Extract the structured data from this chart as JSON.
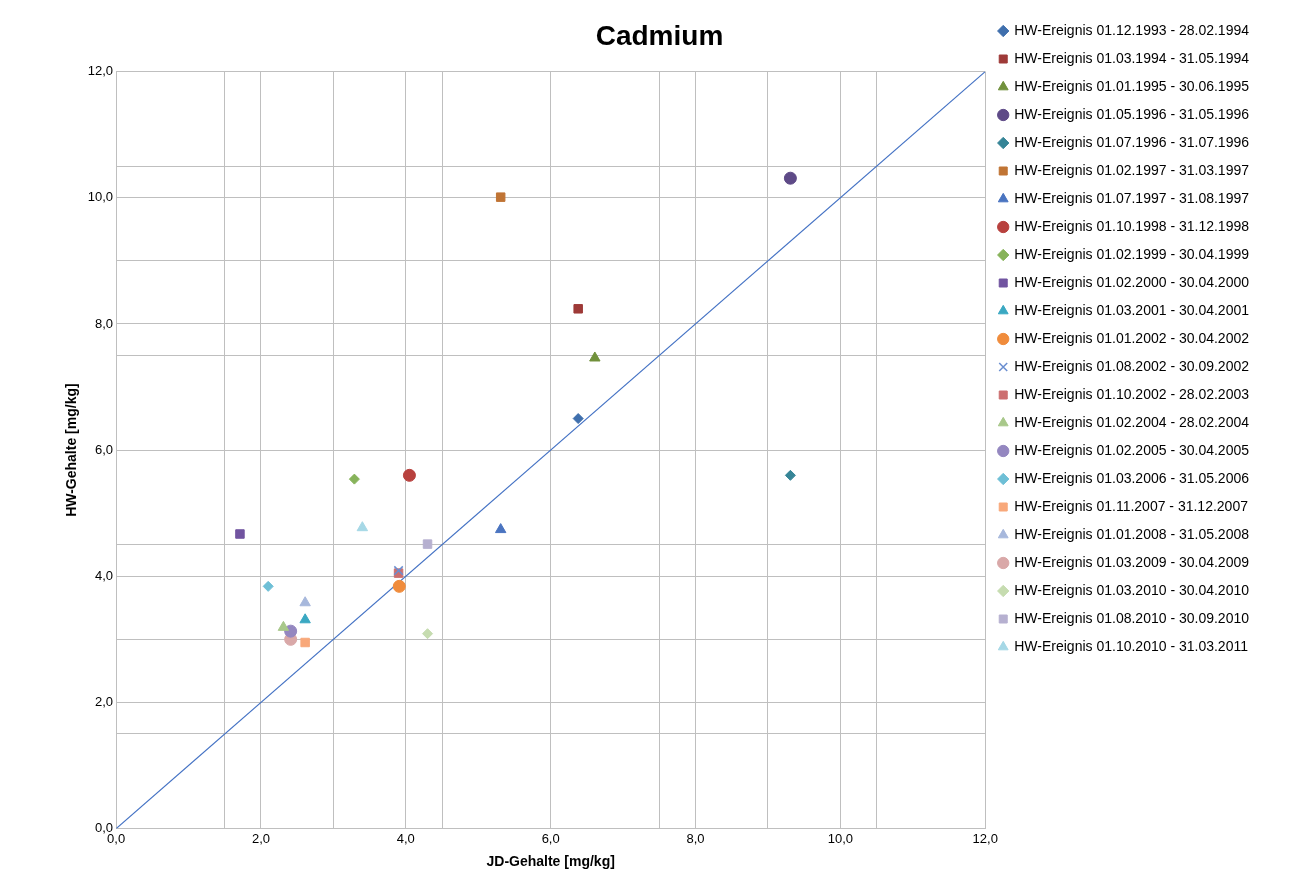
{
  "chart_data": {
    "type": "scatter",
    "title": "Cadmium",
    "xlabel": "JD-Gehalte [mg/kg]",
    "ylabel": "HW-Gehalte [mg/kg]",
    "xlim": [
      0,
      12
    ],
    "ylim": [
      0,
      12
    ],
    "xticks": [
      {
        "value": 0,
        "label": "0,0"
      },
      {
        "value": 1.5,
        "label": null
      },
      {
        "value": 2,
        "label": "2,0"
      },
      {
        "value": 3,
        "label": null
      },
      {
        "value": 4,
        "label": "4,0"
      },
      {
        "value": 4.5,
        "label": null
      },
      {
        "value": 6,
        "label": "6,0"
      },
      {
        "value": 7.5,
        "label": null
      },
      {
        "value": 8,
        "label": "8,0"
      },
      {
        "value": 9,
        "label": null
      },
      {
        "value": 10,
        "label": "10,0"
      },
      {
        "value": 10.5,
        "label": null
      },
      {
        "value": 12,
        "label": "12,0"
      }
    ],
    "yticks": [
      {
        "value": 0,
        "label": "0,0"
      },
      {
        "value": 1.5,
        "label": null
      },
      {
        "value": 2,
        "label": "2,0"
      },
      {
        "value": 3,
        "label": null
      },
      {
        "value": 4,
        "label": "4,0"
      },
      {
        "value": 4.5,
        "label": null
      },
      {
        "value": 6,
        "label": "6,0"
      },
      {
        "value": 7.5,
        "label": null
      },
      {
        "value": 8,
        "label": "8,0"
      },
      {
        "value": 9,
        "label": null
      },
      {
        "value": 10,
        "label": "10,0"
      },
      {
        "value": 10.5,
        "label": null
      },
      {
        "value": 12,
        "label": "12,0"
      }
    ],
    "grid": true,
    "legend": "right",
    "series": [
      {
        "name": "HW-Ereignis 01.12.1993 - 28.02.1994",
        "color": "#3f6fad",
        "marker": "diamond",
        "x": [
          6.38
        ],
        "values": [
          6.5
        ]
      },
      {
        "name": "HW-Ereignis 01.03.1994 - 31.05.1994",
        "color": "#9e3a38",
        "marker": "square",
        "x": [
          6.38
        ],
        "values": [
          8.24
        ]
      },
      {
        "name": "HW-Ereignis 01.01.1995 - 30.06.1995",
        "color": "#71913c",
        "marker": "triangle",
        "x": [
          6.61
        ],
        "values": [
          7.46
        ]
      },
      {
        "name": "HW-Ereignis 01.05.1996 - 31.05.1996",
        "color": "#5e4a87",
        "marker": "circle",
        "x": [
          9.31
        ],
        "values": [
          10.31
        ]
      },
      {
        "name": "HW-Ereignis 01.07.1996 - 31.07.1996",
        "color": "#368597",
        "marker": "diamond",
        "x": [
          9.31
        ],
        "values": [
          5.6
        ]
      },
      {
        "name": "HW-Ereignis 01.02.1997 - 31.03.1997",
        "color": "#c07434",
        "marker": "square",
        "x": [
          5.31
        ],
        "values": [
          10.01
        ]
      },
      {
        "name": "HW-Ereignis 01.07.1997 - 31.08.1997",
        "color": "#4a74c0",
        "marker": "triangle",
        "x": [
          5.31
        ],
        "values": [
          4.74
        ]
      },
      {
        "name": "HW-Ereignis 01.10.1998 - 31.12.1998",
        "color": "#b8413e",
        "marker": "circle",
        "x": [
          4.05
        ],
        "values": [
          5.6
        ]
      },
      {
        "name": "HW-Ereignis 01.02.1999 - 30.04.1999",
        "color": "#87b35a",
        "marker": "diamond",
        "x": [
          3.29
        ],
        "values": [
          5.54
        ]
      },
      {
        "name": "HW-Ereignis 01.02.2000 - 30.04.2000",
        "color": "#7154a0",
        "marker": "square",
        "x": [
          1.71
        ],
        "values": [
          4.67
        ]
      },
      {
        "name": "HW-Ereignis 01.03.2001 - 30.04.2001",
        "color": "#3aa8c2",
        "marker": "triangle",
        "x": [
          2.61
        ],
        "values": [
          3.31
        ]
      },
      {
        "name": "HW-Ereignis 01.01.2002 - 30.04.2002",
        "color": "#f08c3c",
        "marker": "circle",
        "x": [
          3.91
        ],
        "values": [
          3.84
        ]
      },
      {
        "name": "HW-Ereignis 01.08.2002 - 30.09.2002",
        "color": "#6a8ed0",
        "marker": "cross",
        "x": [
          3.9
        ],
        "values": [
          4.09
        ]
      },
      {
        "name": "HW-Ereignis 01.10.2002 - 28.02.2003",
        "color": "#cc6f70",
        "marker": "square",
        "x": [
          3.9
        ],
        "values": [
          4.05
        ]
      },
      {
        "name": "HW-Ereignis 01.02.2004 - 28.02.2004",
        "color": "#a8c88a",
        "marker": "triangle",
        "x": [
          2.31
        ],
        "values": [
          3.19
        ]
      },
      {
        "name": "HW-Ereignis 01.02.2005 - 30.04.2005",
        "color": "#9487c0",
        "marker": "circle",
        "x": [
          2.41
        ],
        "values": [
          3.13
        ]
      },
      {
        "name": "HW-Ereignis 01.03.2006 - 31.05.2006",
        "color": "#6ebfd6",
        "marker": "diamond",
        "x": [
          2.1
        ],
        "values": [
          3.84
        ]
      },
      {
        "name": "HW-Ereignis 01.11.2007 - 31.12.2007",
        "color": "#f8a87a",
        "marker": "square",
        "x": [
          2.61
        ],
        "values": [
          2.95
        ]
      },
      {
        "name": "HW-Ereignis 01.01.2008 - 31.05.2008",
        "color": "#a7b8dc",
        "marker": "triangle",
        "x": [
          2.61
        ],
        "values": [
          3.58
        ]
      },
      {
        "name": "HW-Ereignis 01.03.2009 - 30.04.2009",
        "color": "#d9a8a8",
        "marker": "circle",
        "x": [
          2.41
        ],
        "values": [
          3.0
        ]
      },
      {
        "name": "HW-Ereignis 01.03.2010 - 30.04.2010",
        "color": "#c6dcb0",
        "marker": "diamond",
        "x": [
          4.3
        ],
        "values": [
          3.09
        ]
      },
      {
        "name": "HW-Ereignis 01.08.2010 - 30.09.2010",
        "color": "#b6b0d0",
        "marker": "square",
        "x": [
          4.3
        ],
        "values": [
          4.51
        ]
      },
      {
        "name": "HW-Ereignis 01.10.2010 - 31.03.2011",
        "color": "#a6d8e6",
        "marker": "triangle",
        "x": [
          3.4
        ],
        "values": [
          4.77
        ]
      },
      {
        "type": "line",
        "color": "#4472c4",
        "marker": "none",
        "x": [
          0,
          12
        ],
        "values": [
          0,
          12
        ]
      }
    ]
  }
}
